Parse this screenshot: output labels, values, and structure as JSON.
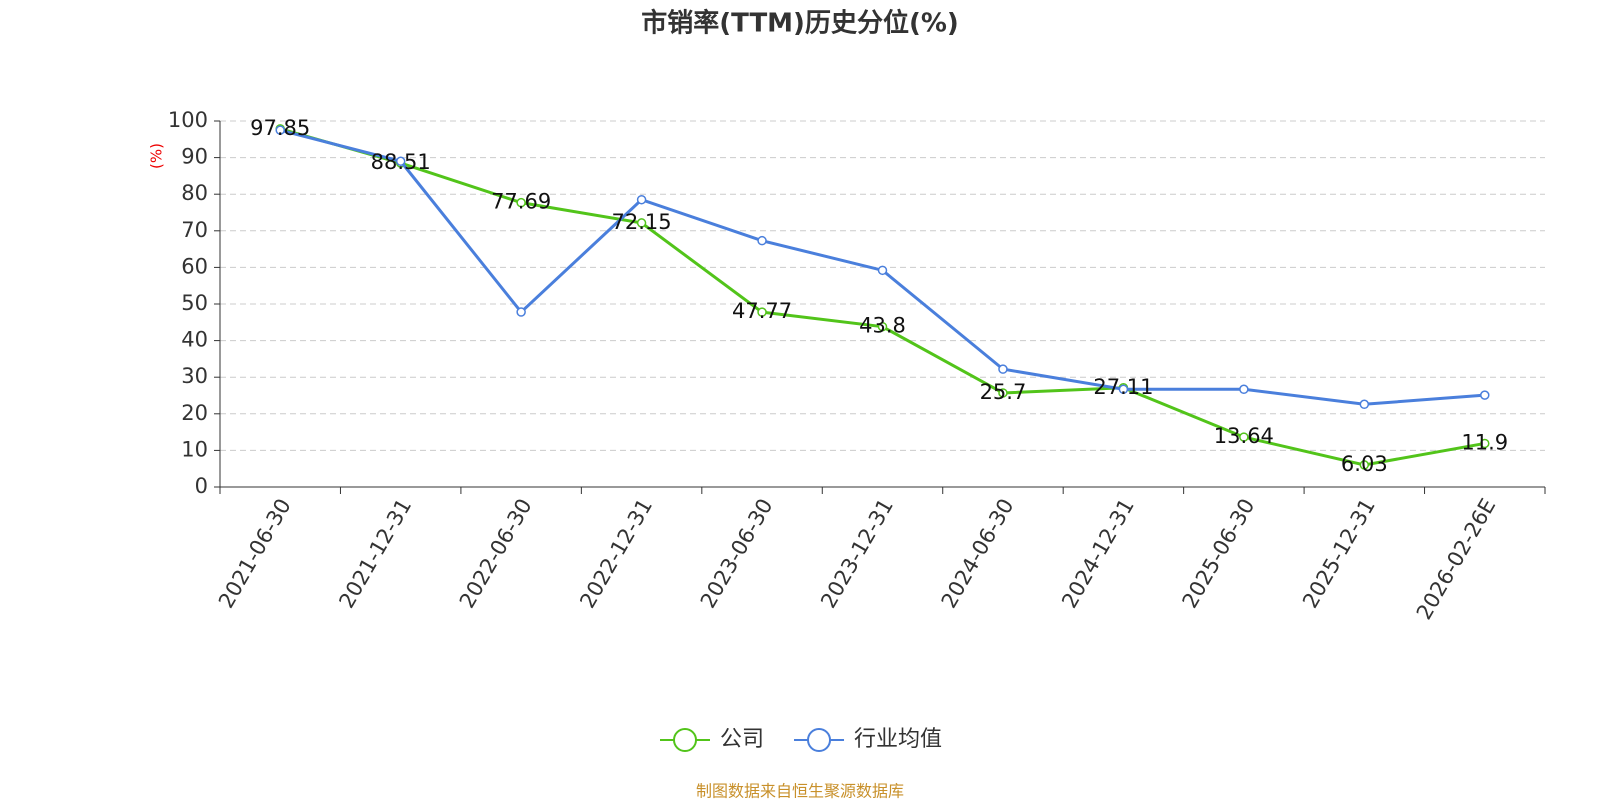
{
  "chart_data": {
    "type": "line",
    "title": "市销率(TTM)历史分位(%)",
    "y_label": "(%)",
    "categories": [
      "2021-06-30",
      "2021-12-31",
      "2022-06-30",
      "2022-12-31",
      "2023-06-30",
      "2023-12-31",
      "2024-06-30",
      "2024-12-31",
      "2025-06-30",
      "2025-12-31",
      "2026-02-26E"
    ],
    "series": [
      {
        "name": "公司",
        "color": "#52c41a",
        "values": [
          97.85,
          88.51,
          77.69,
          72.15,
          47.77,
          43.8,
          25.7,
          27.11,
          13.64,
          6.03,
          11.9
        ],
        "data_labels": true
      },
      {
        "name": "行业均值",
        "color": "#4a7fdc",
        "values": [
          97.5,
          89,
          47.8,
          78.5,
          67.3,
          59.2,
          32.2,
          26.7,
          26.7,
          22.6,
          25.1
        ],
        "data_labels": false
      }
    ],
    "ylim": [
      0,
      100
    ],
    "yticks": [
      0,
      10,
      20,
      30,
      40,
      50,
      60,
      70,
      80,
      90,
      100
    ],
    "grid": true,
    "legend": "bottom",
    "source": "制图数据来自恒生聚源数据库"
  }
}
